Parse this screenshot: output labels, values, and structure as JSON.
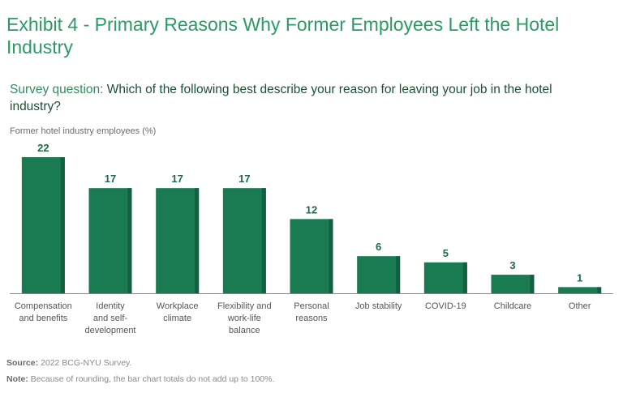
{
  "title": "Exhibit 4 - Primary Reasons Why Former Employees Left the Hotel Industry",
  "question": {
    "label": "Survey question:",
    "text": "Which of the following best describe your reason for leaving your job in the hotel industry?"
  },
  "footer": {
    "source_label": "Source:",
    "source_text": "2022 BCG-NYU Survey.",
    "note_label": "Note:",
    "note_text": "Because of rounding, the bar chart totals do not add up to 100%."
  },
  "colors": {
    "bar": "#1a7a51",
    "bar_shade": "#136040",
    "value_label": "#1f6b45",
    "axis": "#888888"
  },
  "chart_data": {
    "type": "bar",
    "title": "Primary Reasons Why Former Employees Left the Hotel Industry",
    "ylabel": "Former hotel industry employees (%)",
    "xlabel": "",
    "ylim": [
      0,
      22
    ],
    "grid": false,
    "categories": [
      [
        "Compensation",
        "and benefits"
      ],
      [
        "Identity",
        "and self-",
        "development"
      ],
      [
        "Workplace",
        "climate"
      ],
      [
        "Flexibility and",
        "work-life",
        "balance"
      ],
      [
        "Personal",
        "reasons"
      ],
      [
        "Job stability"
      ],
      [
        "COVID-19"
      ],
      [
        "Childcare"
      ],
      [
        "Other"
      ]
    ],
    "values": [
      22,
      17,
      17,
      17,
      12,
      6,
      5,
      3,
      1
    ]
  }
}
